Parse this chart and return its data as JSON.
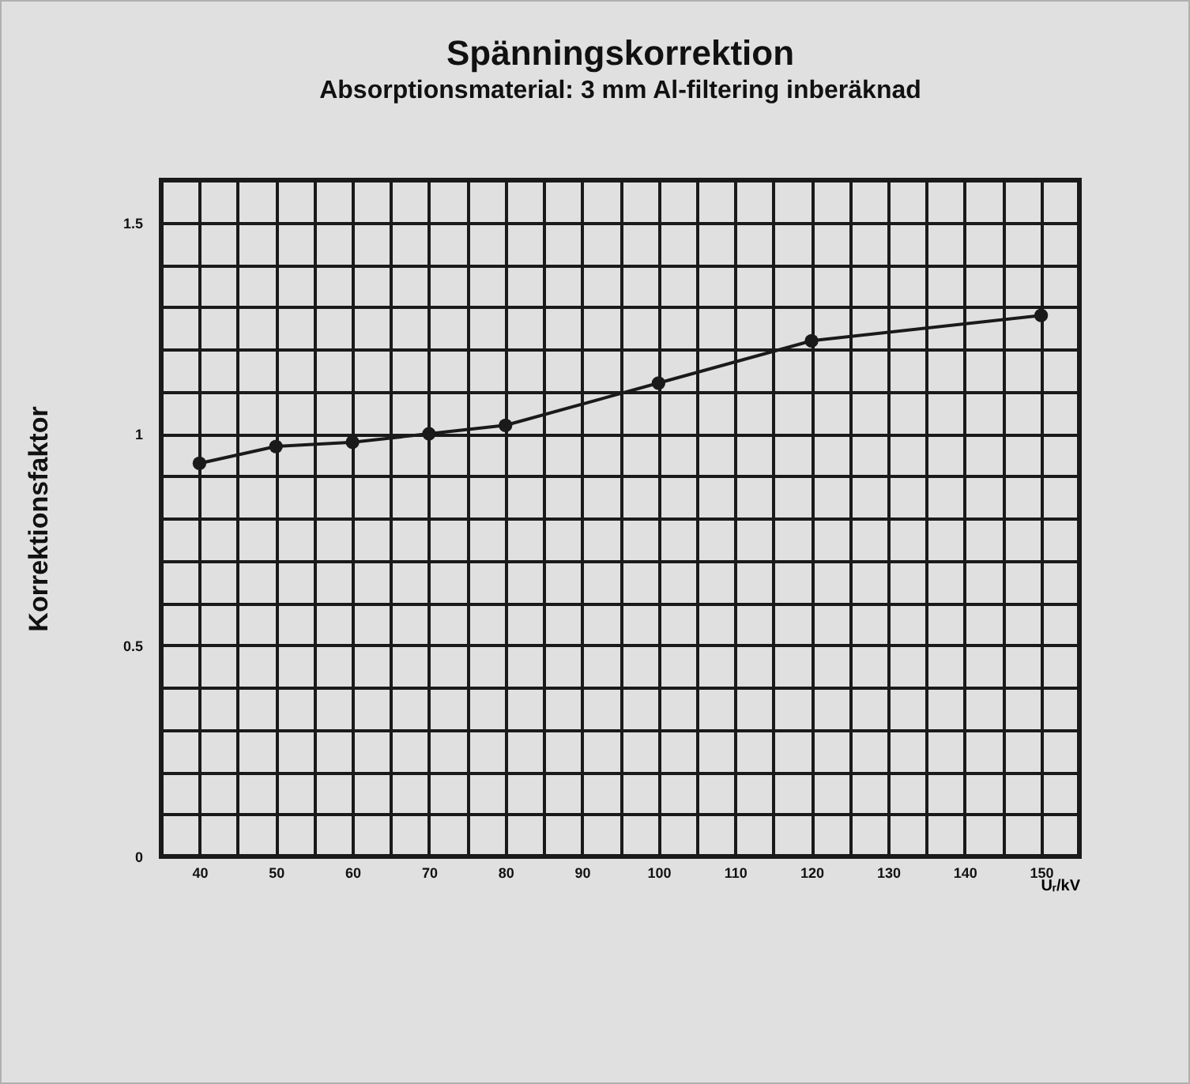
{
  "chart_data": {
    "type": "line",
    "title": "Spänningskorrektion",
    "subtitle": "Absorptionsmaterial: 3 mm Al-filtering inberäknad",
    "xlabel": "Uᵣ/kV",
    "ylabel": "Korrektionsfaktor",
    "x": [
      40,
      50,
      60,
      70,
      80,
      100,
      120,
      150
    ],
    "series": [
      {
        "color": "#1a1a1a",
        "values": [
          0.93,
          0.97,
          0.98,
          1.0,
          1.02,
          1.12,
          1.22,
          1.28
        ]
      }
    ],
    "xlim": [
      35,
      155
    ],
    "ylim": [
      0,
      1.6
    ],
    "xticks": [
      40,
      {
        "value": 45,
        "label": null
      },
      50,
      {
        "value": 55,
        "label": null
      },
      60,
      {
        "value": 65,
        "label": null
      },
      70,
      {
        "value": 75,
        "label": null
      },
      80,
      {
        "value": 85,
        "label": null
      },
      90,
      {
        "value": 95,
        "label": null
      },
      100,
      {
        "value": 105,
        "label": null
      },
      110,
      {
        "value": 115,
        "label": null
      },
      120,
      {
        "value": 125,
        "label": null
      },
      130,
      {
        "value": 135,
        "label": null
      },
      140,
      {
        "value": 145,
        "label": null
      },
      150
    ],
    "yticks": [
      0,
      {
        "value": 0.1,
        "label": null
      },
      {
        "value": 0.2,
        "label": null
      },
      {
        "value": 0.3,
        "label": null
      },
      {
        "value": 0.4,
        "label": null
      },
      0.5,
      {
        "value": 0.6,
        "label": null
      },
      {
        "value": 0.7,
        "label": null
      },
      {
        "value": 0.8,
        "label": null
      },
      {
        "value": 0.9,
        "label": null
      },
      1,
      {
        "value": 1.1,
        "label": null
      },
      {
        "value": 1.2,
        "label": null
      },
      {
        "value": 1.3,
        "label": null
      },
      {
        "value": 1.4,
        "label": null
      },
      1.5
    ],
    "grid": true,
    "marker": "circle",
    "line_style": "solid"
  }
}
